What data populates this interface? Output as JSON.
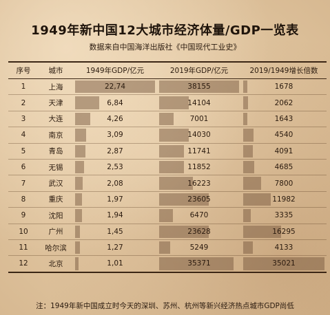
{
  "title": "1949年新中国12大城市经济体量/GDP一览表",
  "subtitle": "数据来自中国海洋出版社《中国现代工业史》",
  "headers": {
    "idx": "序号",
    "city": "城市",
    "gdp1949": "1949年GDP/亿元",
    "gdp2019": "2019年GDP/亿元",
    "growth": "2019/1949增长倍数"
  },
  "rows": [
    {
      "idx": "1",
      "city": "上海",
      "gdp1949": "22,74",
      "gdp2019": "38155",
      "growth": "1678",
      "gdp1949_value": 22.74,
      "gdp2019_value": 38155,
      "growth_value": 1678
    },
    {
      "idx": "2",
      "city": "天津",
      "gdp1949": "6,84",
      "gdp2019": "14104",
      "growth": "2062",
      "gdp1949_value": 6.84,
      "gdp2019_value": 14104,
      "growth_value": 2062
    },
    {
      "idx": "3",
      "city": "大连",
      "gdp1949": "4,26",
      "gdp2019": "7001",
      "growth": "1643",
      "gdp1949_value": 4.26,
      "gdp2019_value": 7001,
      "growth_value": 1643
    },
    {
      "idx": "4",
      "city": "南京",
      "gdp1949": "3,09",
      "gdp2019": "14030",
      "growth": "4540",
      "gdp1949_value": 3.09,
      "gdp2019_value": 14030,
      "growth_value": 4540
    },
    {
      "idx": "5",
      "city": "青岛",
      "gdp1949": "2,87",
      "gdp2019": "11741",
      "growth": "4091",
      "gdp1949_value": 2.87,
      "gdp2019_value": 11741,
      "growth_value": 4091
    },
    {
      "idx": "6",
      "city": "无锡",
      "gdp1949": "2,53",
      "gdp2019": "11852",
      "growth": "4685",
      "gdp1949_value": 2.53,
      "gdp2019_value": 11852,
      "growth_value": 4685
    },
    {
      "idx": "7",
      "city": "武汉",
      "gdp1949": "2,08",
      "gdp2019": "16223",
      "growth": "7800",
      "gdp1949_value": 2.08,
      "gdp2019_value": 16223,
      "growth_value": 7800
    },
    {
      "idx": "8",
      "city": "重庆",
      "gdp1949": "1,97",
      "gdp2019": "23605",
      "growth": "11982",
      "gdp1949_value": 1.97,
      "gdp2019_value": 23605,
      "growth_value": 11982
    },
    {
      "idx": "9",
      "city": "沈阳",
      "gdp1949": "1,94",
      "gdp2019": "6470",
      "growth": "3335",
      "gdp1949_value": 1.94,
      "gdp2019_value": 6470,
      "growth_value": 3335
    },
    {
      "idx": "10",
      "city": "广州",
      "gdp1949": "1,45",
      "gdp2019": "23628",
      "growth": "16295",
      "gdp1949_value": 1.45,
      "gdp2019_value": 23628,
      "growth_value": 16295
    },
    {
      "idx": "11",
      "city": "哈尔滨",
      "gdp1949": "1,27",
      "gdp2019": "5249",
      "growth": "4133",
      "gdp1949_value": 1.27,
      "gdp2019_value": 5249,
      "growth_value": 4133
    },
    {
      "idx": "12",
      "city": "北京",
      "gdp1949": "1,01",
      "gdp2019": "35371",
      "growth": "35021",
      "gdp1949_value": 1.01,
      "gdp2019_value": 35371,
      "growth_value": 35021
    }
  ],
  "note": "注：1949年新中国成立时今天的深圳、苏州、杭州等新兴经济热点城市GDP尚低",
  "colors": {
    "bar": "#8a6a50",
    "background": "#e3c9a4",
    "text": "#2a1a0e"
  }
}
